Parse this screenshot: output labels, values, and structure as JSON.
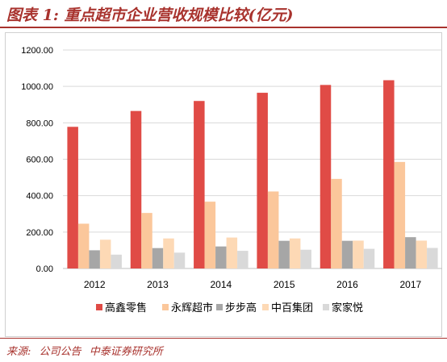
{
  "figure": {
    "title": "图表 1:  重点超市企业营收规模比较(亿元)",
    "source_label": "来源:",
    "source_parts": [
      "公司公告",
      "中泰证券研究所"
    ]
  },
  "chart_data": {
    "type": "bar",
    "categories": [
      "2012",
      "2013",
      "2014",
      "2015",
      "2016",
      "2017"
    ],
    "series": [
      {
        "name": "高鑫零售",
        "color": "#e04b46",
        "values": [
          778,
          865,
          920,
          965,
          1008,
          1034
        ]
      },
      {
        "name": "永辉超市",
        "color": "#fbc79b",
        "values": [
          246,
          305,
          367,
          423,
          492,
          585
        ]
      },
      {
        "name": "步步高",
        "color": "#a6a6a6",
        "values": [
          100,
          112,
          121,
          152,
          152,
          172
        ]
      },
      {
        "name": "中百集团",
        "color": "#fdd9b5",
        "values": [
          158,
          165,
          170,
          165,
          153,
          153
        ]
      },
      {
        "name": "家家悦",
        "color": "#d9d9d9",
        "values": [
          76,
          87,
          97,
          103,
          108,
          113
        ]
      }
    ],
    "yticks": [
      "0.00",
      "200.00",
      "400.00",
      "600.00",
      "800.00",
      "1000.00",
      "1200.00"
    ],
    "ylim": [
      0,
      1200
    ],
    "grid": true,
    "legend": "bottom"
  }
}
